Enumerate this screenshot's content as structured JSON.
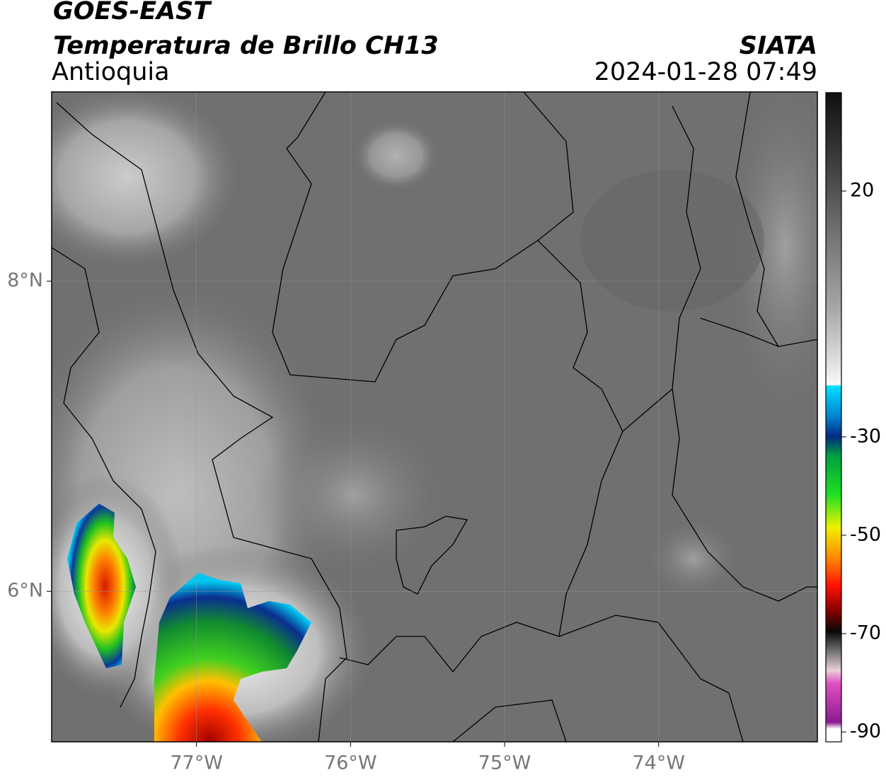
{
  "header": {
    "satellite": "GOES-EAST",
    "product": "Temperatura de Brillo CH13",
    "region": "Antioquia",
    "source": "SIATA",
    "timestamp": "2024-01-28 07:49"
  },
  "map": {
    "xlim": [
      -77.94,
      -72.97
    ],
    "ylim": [
      5.03,
      9.22
    ],
    "lon_ticks": [
      {
        "value": -77,
        "label": "77°W"
      },
      {
        "value": -76,
        "label": "76°W"
      },
      {
        "value": -75,
        "label": "75°W"
      },
      {
        "value": -74,
        "label": "74°W"
      }
    ],
    "lat_ticks": [
      {
        "value": 6,
        "label": "6°N"
      },
      {
        "value": 8,
        "label": "8°N"
      }
    ]
  },
  "colorbar": {
    "lim": [
      -92,
      40
    ],
    "ticks": [
      20,
      -30,
      -50,
      -70,
      -90
    ]
  }
}
